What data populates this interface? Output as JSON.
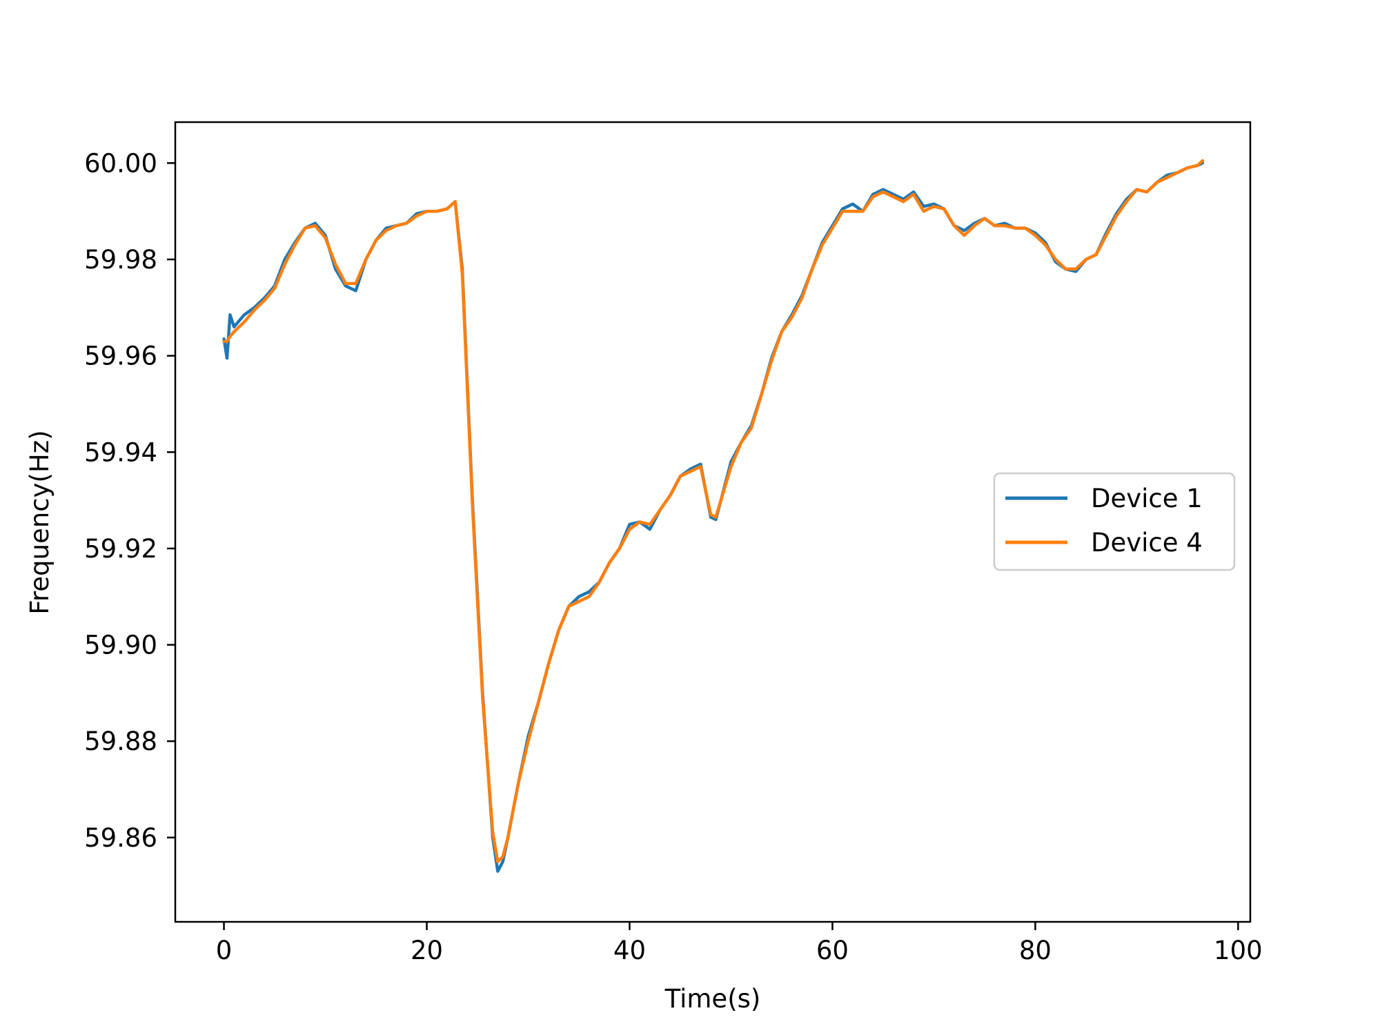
{
  "chart_data": {
    "type": "line",
    "title": "",
    "xlabel": "Time(s)",
    "ylabel": "Frequency(Hz)",
    "xlim": [
      -4.8,
      101.2
    ],
    "ylim": [
      59.8425,
      60.0085
    ],
    "xticks": [
      0,
      20,
      40,
      60,
      80,
      100
    ],
    "xtick_labels": [
      "0",
      "20",
      "40",
      "60",
      "80",
      "100"
    ],
    "yticks": [
      59.86,
      59.88,
      59.9,
      59.92,
      59.94,
      59.96,
      59.98,
      60.0
    ],
    "ytick_labels": [
      "59.86",
      "59.88",
      "59.90",
      "59.92",
      "59.94",
      "59.96",
      "59.98",
      "60.00"
    ],
    "grid": false,
    "legend_position": "center-right",
    "series": [
      {
        "name": "Device 1",
        "color": "#1f77b4",
        "x": [
          0,
          0.3,
          0.6,
          1,
          2,
          3,
          4,
          5,
          6,
          7,
          8,
          9,
          10,
          11,
          12,
          13,
          14,
          15,
          16,
          17,
          18,
          19,
          20,
          21,
          22,
          22.8,
          23.5,
          24.5,
          25.5,
          26.5,
          27,
          27.5,
          28,
          29,
          30,
          31,
          32,
          33,
          34,
          35,
          36,
          37,
          38,
          39,
          40,
          41,
          42,
          43,
          44,
          45,
          46,
          47,
          47.5,
          48,
          48.5,
          49,
          50,
          51,
          52,
          53,
          54,
          55,
          56,
          57,
          58,
          59,
          60,
          61,
          62,
          63,
          64,
          65,
          66,
          67,
          68,
          69,
          70,
          71,
          72,
          73,
          74,
          75,
          76,
          77,
          78,
          79,
          80,
          81,
          82,
          83,
          84,
          85,
          86,
          87,
          88,
          89,
          90,
          91,
          92,
          93,
          94,
          95,
          96,
          96.5
        ],
        "y": [
          59.9635,
          59.9595,
          59.9685,
          59.966,
          59.9685,
          59.97,
          59.972,
          59.9745,
          59.98,
          59.9835,
          59.9865,
          59.9875,
          59.985,
          59.978,
          59.9745,
          59.9735,
          59.98,
          59.984,
          59.9865,
          59.987,
          59.9875,
          59.9895,
          59.99,
          59.99,
          59.9905,
          59.992,
          59.978,
          59.93,
          59.89,
          59.86,
          59.853,
          59.855,
          59.86,
          59.871,
          59.881,
          59.888,
          59.896,
          59.903,
          59.908,
          59.91,
          59.911,
          59.913,
          59.917,
          59.92,
          59.925,
          59.9255,
          59.924,
          59.928,
          59.931,
          59.935,
          59.9365,
          59.9375,
          59.932,
          59.9265,
          59.926,
          59.93,
          59.938,
          59.942,
          59.9455,
          59.952,
          59.9595,
          59.965,
          59.9685,
          59.9725,
          59.978,
          59.9835,
          59.987,
          59.9905,
          59.9915,
          59.99,
          59.9935,
          59.9945,
          59.9935,
          59.9925,
          59.994,
          59.991,
          59.9915,
          59.9905,
          59.987,
          59.986,
          59.9875,
          59.9885,
          59.987,
          59.9875,
          59.9865,
          59.9865,
          59.9855,
          59.9835,
          59.9795,
          59.978,
          59.9775,
          59.98,
          59.981,
          59.9855,
          59.9895,
          59.9925,
          59.9945,
          59.994,
          59.996,
          59.9975,
          59.998,
          59.999,
          59.9995,
          60.0
        ]
      },
      {
        "name": "Device 4",
        "color": "#ff7f0e",
        "x": [
          0,
          0.3,
          0.6,
          1,
          2,
          3,
          4,
          5,
          6,
          7,
          8,
          9,
          10,
          11,
          12,
          13,
          14,
          15,
          16,
          17,
          18,
          19,
          20,
          21,
          22,
          22.8,
          23.5,
          24.5,
          25.5,
          26.5,
          27,
          27.5,
          28,
          29,
          30,
          31,
          32,
          33,
          34,
          35,
          36,
          37,
          38,
          39,
          40,
          41,
          42,
          43,
          44,
          45,
          46,
          47,
          47.5,
          48,
          48.5,
          49,
          50,
          51,
          52,
          53,
          54,
          55,
          56,
          57,
          58,
          59,
          60,
          61,
          62,
          63,
          64,
          65,
          66,
          67,
          68,
          69,
          70,
          71,
          72,
          73,
          74,
          75,
          76,
          77,
          78,
          79,
          80,
          81,
          82,
          83,
          84,
          85,
          86,
          87,
          88,
          89,
          90,
          91,
          92,
          93,
          94,
          95,
          96,
          96.5
        ],
        "y": [
          59.963,
          59.963,
          59.964,
          59.965,
          59.967,
          59.9695,
          59.9715,
          59.974,
          59.979,
          59.983,
          59.9865,
          59.987,
          59.9845,
          59.979,
          59.975,
          59.975,
          59.98,
          59.984,
          59.986,
          59.987,
          59.9875,
          59.989,
          59.99,
          59.99,
          59.9905,
          59.992,
          59.977,
          59.929,
          59.889,
          59.861,
          59.855,
          59.856,
          59.86,
          59.871,
          59.88,
          59.888,
          59.896,
          59.903,
          59.908,
          59.909,
          59.91,
          59.913,
          59.917,
          59.92,
          59.924,
          59.9255,
          59.925,
          59.928,
          59.931,
          59.935,
          59.936,
          59.937,
          59.932,
          59.927,
          59.9265,
          59.93,
          59.937,
          59.942,
          59.945,
          59.952,
          59.959,
          59.965,
          59.968,
          59.972,
          59.978,
          59.983,
          59.9865,
          59.99,
          59.99,
          59.99,
          59.993,
          59.994,
          59.993,
          59.992,
          59.9935,
          59.99,
          59.991,
          59.9905,
          59.987,
          59.985,
          59.987,
          59.9885,
          59.987,
          59.987,
          59.9865,
          59.9865,
          59.985,
          59.983,
          59.98,
          59.978,
          59.978,
          59.98,
          59.981,
          59.985,
          59.989,
          59.992,
          59.9945,
          59.994,
          59.996,
          59.997,
          59.998,
          59.999,
          59.9995,
          60.0005
        ]
      }
    ]
  }
}
